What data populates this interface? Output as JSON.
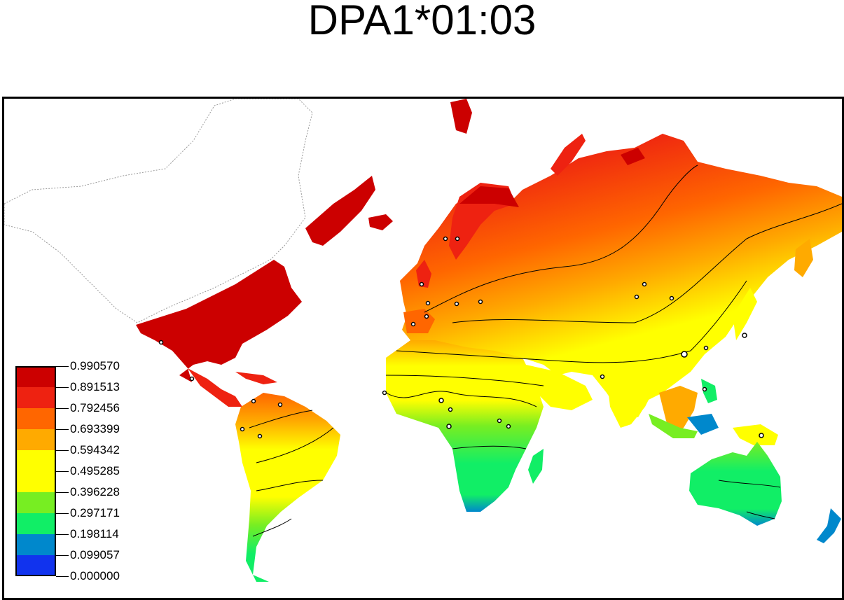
{
  "title": "DPA1*01:03",
  "legend": {
    "labels": [
      "0.990570",
      "0.891513",
      "0.792456",
      "0.693399",
      "0.594342",
      "0.495285",
      "0.396228",
      "0.297171",
      "0.198114",
      "0.099057",
      "0.000000"
    ],
    "colors": [
      "#cc0000",
      "#ee2211",
      "#ff6600",
      "#ffaa00",
      "#ffff00",
      "#ffff00",
      "#77ee22",
      "#11ee66",
      "#0088cc",
      "#1133ee"
    ]
  },
  "colors": {
    "no_data_land": "#ffffff",
    "coastline_no_data": "#888888",
    "contour_line": "#000000",
    "sample_marker": "#ffffff"
  }
}
